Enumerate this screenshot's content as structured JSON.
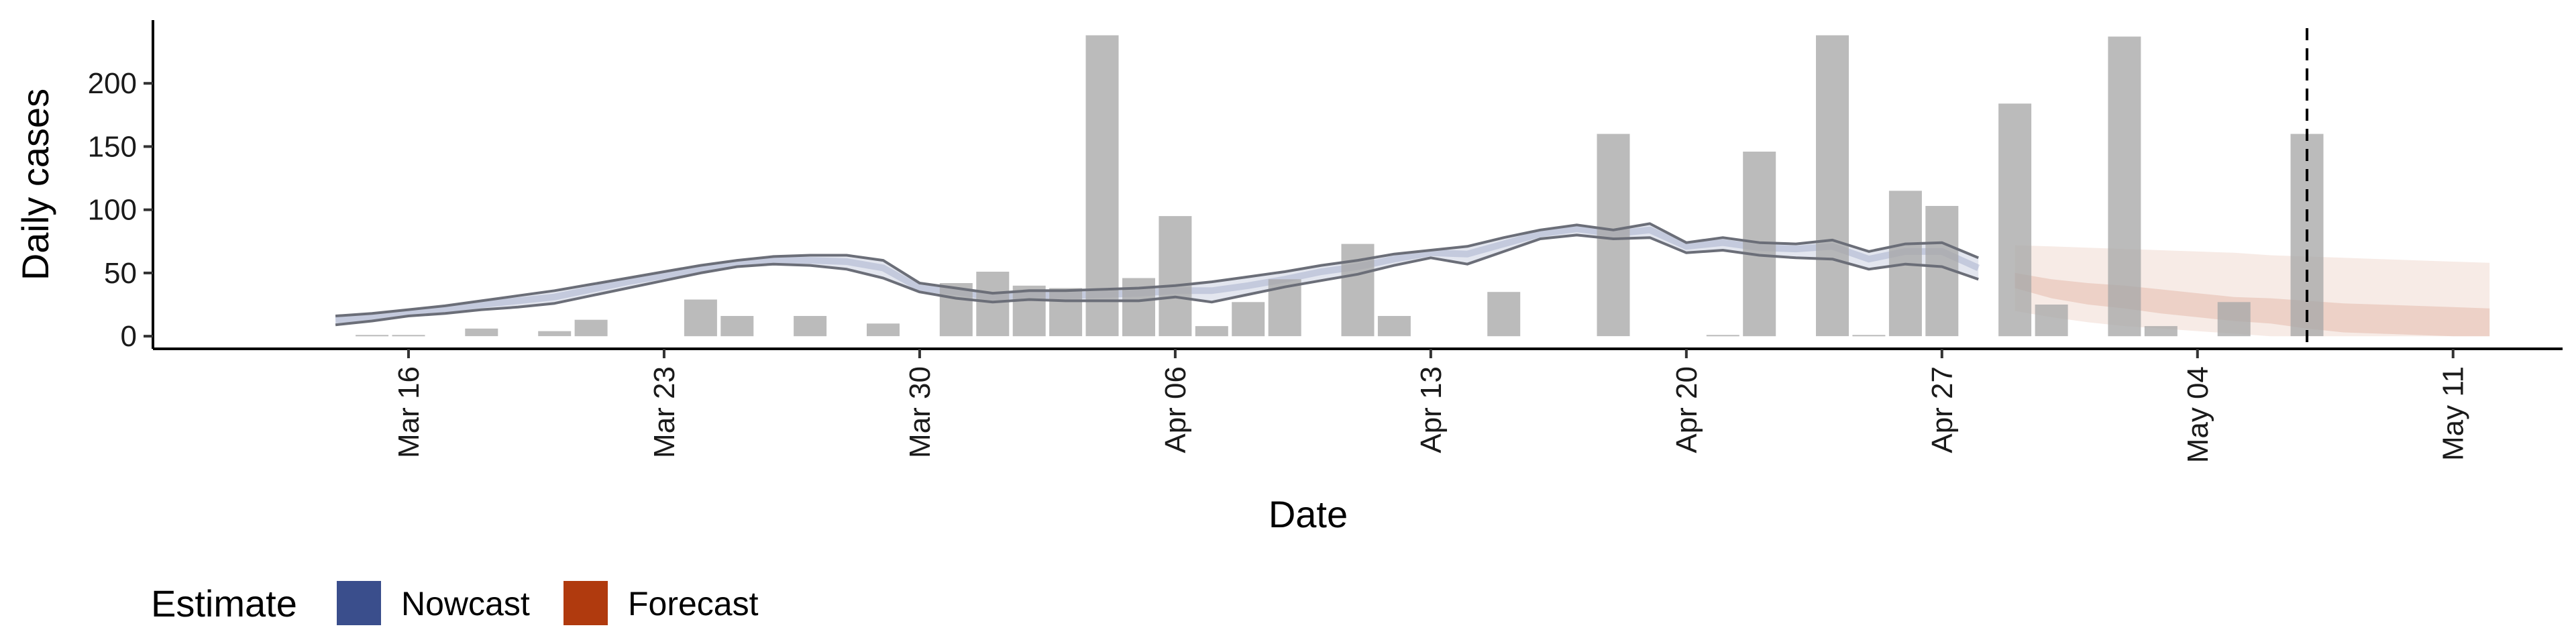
{
  "chart_data": {
    "type": "bar",
    "xlabel": "Date",
    "ylabel": "Daily cases",
    "x_axis_type": "date",
    "x_range": [
      "2020-03-09",
      "2020-05-14"
    ],
    "ylim": [
      -10,
      250
    ],
    "y_ticks": [
      0,
      50,
      100,
      150,
      200
    ],
    "y_tick_labels": [
      "0",
      "50",
      "100",
      "150",
      "200"
    ],
    "x_ticks": [
      {
        "date": "2020-03-16",
        "label": "Mar 16"
      },
      {
        "date": "2020-03-23",
        "label": "Mar 23"
      },
      {
        "date": "2020-03-30",
        "label": "Mar 30"
      },
      {
        "date": "2020-04-06",
        "label": "Apr 06"
      },
      {
        "date": "2020-04-13",
        "label": "Apr 13"
      },
      {
        "date": "2020-04-20",
        "label": "Apr 20"
      },
      {
        "date": "2020-04-27",
        "label": "Apr 27"
      },
      {
        "date": "2020-05-04",
        "label": "May 04"
      },
      {
        "date": "2020-05-11",
        "label": "May 11"
      }
    ],
    "grid": false,
    "reference_line_date": "2020-05-07",
    "bars": {
      "dates": [
        "2020-03-14",
        "2020-03-15",
        "2020-03-16",
        "2020-03-17",
        "2020-03-18",
        "2020-03-19",
        "2020-03-20",
        "2020-03-21",
        "2020-03-22",
        "2020-03-23",
        "2020-03-24",
        "2020-03-25",
        "2020-03-26",
        "2020-03-27",
        "2020-03-28",
        "2020-03-29",
        "2020-03-30",
        "2020-03-31",
        "2020-04-01",
        "2020-04-02",
        "2020-04-03",
        "2020-04-04",
        "2020-04-05",
        "2020-04-06",
        "2020-04-07",
        "2020-04-08",
        "2020-04-09",
        "2020-04-10",
        "2020-04-11",
        "2020-04-12",
        "2020-04-13",
        "2020-04-14",
        "2020-04-15",
        "2020-04-16",
        "2020-04-17",
        "2020-04-18",
        "2020-04-19",
        "2020-04-20",
        "2020-04-21",
        "2020-04-22",
        "2020-04-23",
        "2020-04-24",
        "2020-04-25",
        "2020-04-26",
        "2020-04-27",
        "2020-04-28",
        "2020-04-29",
        "2020-04-30",
        "2020-05-01",
        "2020-05-02",
        "2020-05-03",
        "2020-05-04",
        "2020-05-05",
        "2020-05-06",
        "2020-05-07"
      ],
      "values": [
        0,
        1,
        1,
        0,
        6,
        0,
        4,
        13,
        0,
        0,
        29,
        16,
        0,
        16,
        0,
        10,
        0,
        42,
        51,
        40,
        38,
        238,
        46,
        95,
        8,
        27,
        45,
        0,
        73,
        16,
        0,
        0,
        35,
        0,
        0,
        160,
        0,
        0,
        1,
        146,
        0,
        238,
        1,
        115,
        103,
        0,
        184,
        25,
        0,
        237,
        8,
        0,
        27,
        0,
        160
      ]
    },
    "series": [
      {
        "name": "Nowcast",
        "color": "#3A4E8C",
        "dates": [
          "2020-03-14",
          "2020-03-15",
          "2020-03-16",
          "2020-03-17",
          "2020-03-18",
          "2020-03-19",
          "2020-03-20",
          "2020-03-21",
          "2020-03-22",
          "2020-03-23",
          "2020-03-24",
          "2020-03-25",
          "2020-03-26",
          "2020-03-27",
          "2020-03-28",
          "2020-03-29",
          "2020-03-30",
          "2020-03-31",
          "2020-04-01",
          "2020-04-02",
          "2020-04-03",
          "2020-04-04",
          "2020-04-05",
          "2020-04-06",
          "2020-04-07",
          "2020-04-08",
          "2020-04-09",
          "2020-04-10",
          "2020-04-11",
          "2020-04-12",
          "2020-04-13",
          "2020-04-14",
          "2020-04-15",
          "2020-04-16",
          "2020-04-17",
          "2020-04-18",
          "2020-04-19",
          "2020-04-20",
          "2020-04-21",
          "2020-04-22",
          "2020-04-23",
          "2020-04-24",
          "2020-04-25",
          "2020-04-26",
          "2020-04-27",
          "2020-04-28"
        ],
        "upper": [
          16,
          18,
          21,
          24,
          28,
          32,
          36,
          41,
          46,
          51,
          56,
          60,
          63,
          64,
          64,
          60,
          42,
          38,
          34,
          36,
          36,
          37,
          38,
          40,
          43,
          47,
          51,
          56,
          60,
          65,
          68,
          71,
          78,
          84,
          88,
          84,
          89,
          74,
          78,
          74,
          73,
          76,
          67,
          73,
          74,
          62
        ],
        "lower": [
          9,
          12,
          16,
          18,
          21,
          23,
          26,
          32,
          38,
          44,
          50,
          55,
          57,
          56,
          53,
          46,
          35,
          30,
          27,
          29,
          28,
          28,
          28,
          31,
          27,
          33,
          39,
          44,
          49,
          56,
          62,
          57,
          67,
          77,
          80,
          77,
          78,
          66,
          68,
          64,
          62,
          61,
          53,
          57,
          55,
          45
        ],
        "median": [
          13,
          15,
          19,
          21,
          25,
          28,
          31,
          37,
          43,
          48,
          53,
          58,
          60,
          60,
          59,
          54,
          38,
          35,
          31,
          33,
          32,
          33,
          34,
          36,
          36,
          40,
          45,
          51,
          55,
          61,
          66,
          65,
          73,
          81,
          85,
          81,
          84,
          71,
          74,
          70,
          69,
          71,
          61,
          67,
          67,
          54
        ]
      },
      {
        "name": "Forecast",
        "color": "#B03A0E",
        "dates": [
          "2020-04-29",
          "2020-04-30",
          "2020-05-01",
          "2020-05-02",
          "2020-05-03",
          "2020-05-04",
          "2020-05-05",
          "2020-05-06",
          "2020-05-07",
          "2020-05-08",
          "2020-05-09",
          "2020-05-10",
          "2020-05-11",
          "2020-05-12"
        ],
        "upper90": [
          72,
          71,
          70,
          69,
          68,
          67,
          66,
          64,
          63,
          62,
          61,
          60,
          59,
          58
        ],
        "lower90": [
          20,
          15,
          11,
          8,
          6,
          4,
          2,
          0,
          0,
          0,
          0,
          0,
          0,
          0
        ],
        "upper50": [
          50,
          45,
          42,
          40,
          37,
          34,
          31,
          30,
          28,
          26,
          25,
          24,
          23,
          22
        ],
        "lower50": [
          38,
          30,
          25,
          22,
          18,
          15,
          12,
          10,
          6,
          3,
          2,
          1,
          0,
          0
        ]
      }
    ],
    "legend": {
      "title": "Estimate",
      "position": "bottom-left",
      "items": [
        {
          "label": "Nowcast",
          "color": "#3A4E8C"
        },
        {
          "label": "Forecast",
          "color": "#B03A0E"
        }
      ]
    }
  }
}
